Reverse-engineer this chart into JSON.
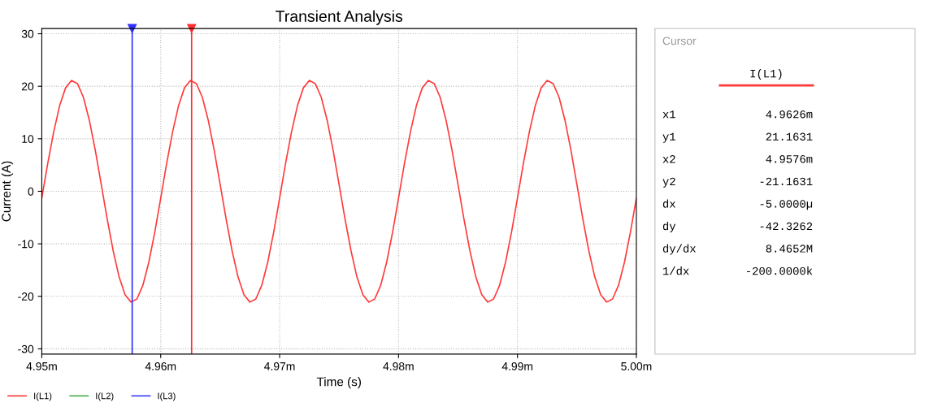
{
  "chart_data": {
    "type": "line",
    "title": "Transient Analysis",
    "xlabel": "Time (s)",
    "ylabel": "Current (A)",
    "x": [
      4.95,
      4.9505,
      4.951,
      4.9515,
      4.952,
      4.9525,
      4.953,
      4.9535,
      4.954,
      4.9545,
      4.955,
      4.9555,
      4.956,
      4.9565,
      4.957,
      4.9575,
      4.958,
      4.9585,
      4.959,
      4.9595,
      4.96,
      4.9605,
      4.961,
      4.9615,
      4.962,
      4.9625,
      4.963,
      4.9635,
      4.964,
      4.9645,
      4.965,
      4.9655,
      4.966,
      4.9665,
      4.967,
      4.9675,
      4.968,
      4.9685,
      4.969,
      4.9695,
      4.97,
      4.9705,
      4.971,
      4.9715,
      4.972,
      4.9725,
      4.973,
      4.9735,
      4.974,
      4.9745,
      4.975,
      4.9755,
      4.976,
      4.9765,
      4.977,
      4.9775,
      4.978,
      4.9785,
      4.979,
      4.9795,
      4.98,
      4.9805,
      4.981,
      4.9815,
      4.982,
      4.9825,
      4.983,
      4.9835,
      4.984,
      4.9845,
      4.985,
      4.9855,
      4.986,
      4.9865,
      4.987,
      4.9875,
      4.988,
      4.9885,
      4.989,
      4.9895,
      4.99,
      4.9905,
      4.991,
      4.9915,
      4.992,
      4.9925,
      4.993,
      4.9935,
      4.994,
      4.9945,
      4.995,
      4.9955,
      4.996,
      4.9965,
      4.997,
      4.9975,
      4.998,
      4.9985,
      4.999,
      4.9995,
      5.0
    ],
    "series": [
      {
        "name": "I(L1)",
        "color": "#ff3b3b",
        "values": [
          -1.3,
          5.3,
          11.3,
          16.3,
          19.7,
          21.1,
          20.5,
          17.9,
          13.5,
          7.8,
          1.3,
          -5.3,
          -11.3,
          -16.3,
          -19.7,
          -21.1,
          -20.5,
          -17.9,
          -13.5,
          -7.8,
          -1.3,
          5.3,
          11.3,
          16.3,
          19.7,
          21.1,
          20.5,
          17.9,
          13.5,
          7.8,
          1.3,
          -5.3,
          -11.3,
          -16.3,
          -19.7,
          -21.1,
          -20.5,
          -17.9,
          -13.5,
          -7.8,
          -1.3,
          5.3,
          11.3,
          16.3,
          19.7,
          21.1,
          20.5,
          17.9,
          13.5,
          7.8,
          1.3,
          -5.3,
          -11.3,
          -16.3,
          -19.7,
          -21.1,
          -20.5,
          -17.9,
          -13.5,
          -7.8,
          -1.3,
          5.3,
          11.3,
          16.3,
          19.7,
          21.1,
          20.5,
          17.9,
          13.5,
          7.8,
          1.3,
          -5.3,
          -11.3,
          -16.3,
          -19.7,
          -21.1,
          -20.5,
          -17.9,
          -13.5,
          -7.8,
          -1.3,
          5.3,
          11.3,
          16.3,
          19.7,
          21.1,
          20.5,
          17.9,
          13.5,
          7.8,
          1.3,
          -5.3,
          -11.3,
          -16.3,
          -19.7,
          -21.1,
          -20.5,
          -17.9,
          -13.5,
          -7.8,
          -1.3
        ]
      },
      {
        "name": "I(L2)",
        "color": "#4caf50",
        "values": [
          null,
          null,
          null,
          null,
          null,
          null,
          null,
          null,
          null,
          null,
          null,
          null,
          null,
          null,
          null,
          null,
          null,
          null,
          null,
          null,
          null,
          null,
          null,
          null,
          null,
          null,
          null,
          null,
          null,
          null,
          null,
          null,
          null,
          null,
          null,
          null,
          null,
          null,
          null,
          null,
          null,
          null,
          null,
          null,
          null,
          null,
          null,
          null,
          null,
          null,
          null,
          null,
          null,
          null,
          null,
          null,
          null,
          null,
          null,
          null,
          null,
          null,
          null,
          null,
          null,
          null,
          null,
          null,
          null,
          null,
          null,
          null,
          null,
          null,
          null,
          null,
          null,
          null,
          null,
          null,
          null,
          null,
          null,
          null,
          null,
          null,
          null,
          null,
          null,
          null,
          null,
          null,
          null,
          null,
          null,
          null,
          null,
          null,
          null,
          null,
          null
        ]
      },
      {
        "name": "I(L3)",
        "color": "#4040ff",
        "values": [
          null,
          null,
          null,
          null,
          null,
          null,
          null,
          null,
          null,
          null,
          null,
          null,
          null,
          null,
          null,
          null,
          null,
          null,
          null,
          null,
          null,
          null,
          null,
          null,
          null,
          null,
          null,
          null,
          null,
          null,
          null,
          null,
          null,
          null,
          null,
          null,
          null,
          null,
          null,
          null,
          null,
          null,
          null,
          null,
          null,
          null,
          null,
          null,
          null,
          null,
          null,
          null,
          null,
          null,
          null,
          null,
          null,
          null,
          null,
          null,
          null,
          null,
          null,
          null,
          null,
          null,
          null,
          null,
          null,
          null,
          null,
          null,
          null,
          null,
          null,
          null,
          null,
          null,
          null,
          null,
          null,
          null,
          null,
          null,
          null,
          null,
          null,
          null,
          null,
          null,
          null,
          null,
          null,
          null,
          null,
          null,
          null,
          null,
          null,
          null,
          null
        ]
      }
    ],
    "xlim": [
      4.95,
      5.0
    ],
    "xticks": [
      {
        "value": 4.95,
        "label": "4.95m"
      },
      {
        "value": 4.96,
        "label": "4.96m"
      },
      {
        "value": 4.97,
        "label": "4.97m"
      },
      {
        "value": 4.98,
        "label": "4.98m"
      },
      {
        "value": 4.99,
        "label": "4.99m"
      },
      {
        "value": 5.0,
        "label": "5.00m"
      }
    ],
    "ylim": [
      -31,
      31
    ],
    "yticks": [
      -30,
      -20,
      -10,
      0,
      10,
      20,
      30
    ],
    "grid": true,
    "legend": "bottom left",
    "line_style": "solid",
    "ref_lines": [
      {
        "axis": "x",
        "value": 4.9576,
        "color": "#3030ff"
      },
      {
        "axis": "x",
        "value": 4.9626,
        "color": "#ff3030"
      }
    ],
    "annotations": [
      "Cursor",
      "I(L1)",
      "x1",
      "4.9626m",
      "y1",
      "21.1631",
      "x2",
      "4.9576m",
      "y2",
      "-21.1631",
      "dx",
      "-5.0000µ",
      "dy",
      "-42.3262",
      "dy/dx",
      "8.4652M",
      "1/dx",
      "-200.0000k"
    ]
  }
}
